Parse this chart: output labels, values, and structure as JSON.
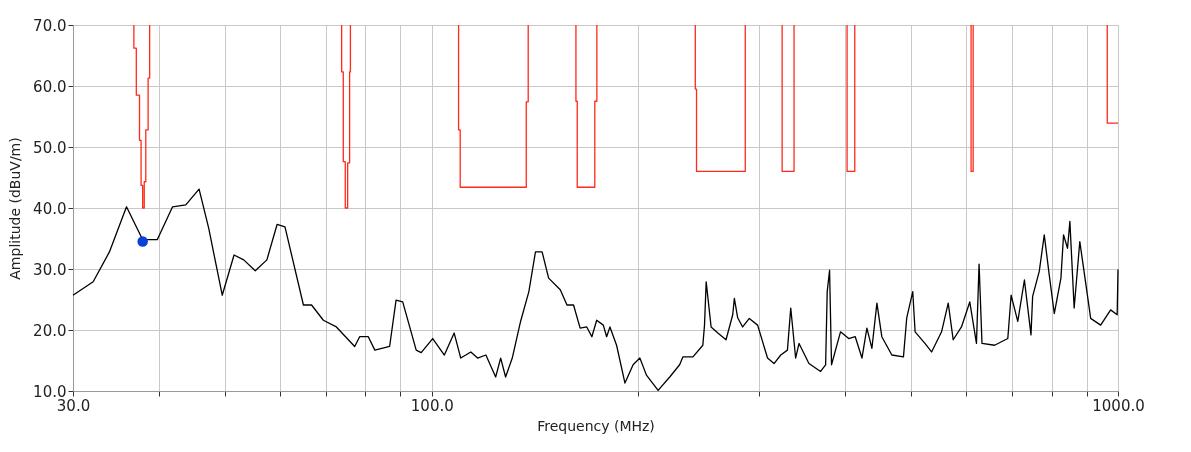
{
  "chart_data": {
    "type": "line",
    "xlabel": "Frequency (MHz)",
    "ylabel": "Amplitude (dBuV/m)",
    "log": "x",
    "grid": true,
    "xlim": [
      30,
      1000
    ],
    "ylim": [
      10,
      70
    ],
    "xticks": [
      {
        "value": 30,
        "label": "30.0"
      },
      {
        "value": 40,
        "label": null
      },
      {
        "value": 50,
        "label": null
      },
      {
        "value": 60,
        "label": null
      },
      {
        "value": 70,
        "label": null
      },
      {
        "value": 80,
        "label": null
      },
      {
        "value": 90,
        "label": null
      },
      {
        "value": 100,
        "label": "100.0"
      },
      {
        "value": 200,
        "label": null
      },
      {
        "value": 300,
        "label": null
      },
      {
        "value": 400,
        "label": null
      },
      {
        "value": 500,
        "label": null
      },
      {
        "value": 600,
        "label": null
      },
      {
        "value": 700,
        "label": null
      },
      {
        "value": 800,
        "label": null
      },
      {
        "value": 900,
        "label": null
      },
      {
        "value": 1000,
        "label": "1000.0"
      }
    ],
    "yticks": [
      {
        "value": 10,
        "label": "10.0"
      },
      {
        "value": 20,
        "label": "20.0"
      },
      {
        "value": 30,
        "label": "30.0"
      },
      {
        "value": 40,
        "label": "40.0"
      },
      {
        "value": 50,
        "label": "50.0"
      },
      {
        "value": 60,
        "label": "60.0"
      },
      {
        "value": 70,
        "label": "70.0"
      }
    ],
    "series": [
      {
        "color": "#ff2a1a",
        "x": [
          36.8,
          36.8,
          37.1,
          37.1,
          37.5,
          37.5,
          37.7,
          37.7,
          37.9,
          37.9,
          38.1,
          38.1,
          38.3,
          38.3,
          38.6,
          38.6,
          38.8,
          38.8
        ],
        "values": [
          70,
          66.2,
          66.2,
          58.5,
          58.5,
          51.1,
          51.1,
          43.7,
          43.7,
          40,
          40,
          44.3,
          44.3,
          52.8,
          52.8,
          61.3,
          61.3,
          70
        ]
      },
      {
        "color": "#ff2a1a",
        "x": [
          73.9,
          73.9,
          74.3,
          74.3,
          74.8,
          74.8,
          75.4,
          75.4,
          75.9,
          75.9,
          76.1,
          76.1
        ],
        "values": [
          70,
          62.3,
          62.3,
          47.6,
          47.6,
          40,
          40,
          47.4,
          47.4,
          62.3,
          62.3,
          70
        ]
      },
      {
        "color": "#ff2a1a",
        "x": [
          109.4,
          109.4,
          110.0,
          110.0,
          137.3,
          137.3,
          138.2,
          138.2
        ],
        "values": [
          70,
          52.8,
          52.8,
          43.4,
          43.4,
          57.4,
          57.4,
          70
        ]
      },
      {
        "color": "#ff2a1a",
        "x": [
          162.2,
          162.2,
          162.9,
          162.9,
          172.8,
          172.8,
          174.0,
          174.0
        ],
        "values": [
          70,
          57.5,
          57.5,
          43.4,
          43.4,
          57.5,
          57.5,
          70
        ]
      },
      {
        "color": "#ff2a1a",
        "x": [
          242.1,
          242.1,
          243.1,
          243.1,
          286.3,
          286.3
        ],
        "values": [
          70,
          59.5,
          59.5,
          46,
          46,
          70
        ]
      },
      {
        "color": "#ff2a1a",
        "x": [
          324,
          324,
          337.2,
          337.2
        ],
        "values": [
          70,
          46,
          46,
          70
        ]
      },
      {
        "color": "#ff2a1a",
        "x": [
          402.9,
          402.9,
          413.4,
          413.4
        ],
        "values": [
          70,
          46,
          46,
          70
        ]
      },
      {
        "color": "#ff2a1a",
        "x": [
          610.8,
          610.8,
          615.1,
          615.1
        ],
        "values": [
          70,
          46,
          46,
          70
        ]
      },
      {
        "color": "#ff2a1a",
        "x": [
          964.6,
          964.6,
          1000
        ],
        "values": [
          70,
          53.9,
          53.9
        ]
      },
      {
        "color": "#000000",
        "x": [
          30,
          32.1,
          33.9,
          35.9,
          37.9,
          39.8,
          41.9,
          43.8,
          45.8,
          47.3,
          49.5,
          51.5,
          53.2,
          55.3,
          57.5,
          59.5,
          61.1,
          65.0,
          66.8,
          69.5,
          72.6,
          77.2,
          78.5,
          80.8,
          82.6,
          86.8,
          88.7,
          90.7,
          94.9,
          96.5,
          100.3,
          104.3,
          107.8,
          110.2,
          114.0,
          116.6,
          119.9,
          123.9,
          126.0,
          128.1,
          131.0,
          134.7,
          138.5,
          141.6,
          144.8,
          148.0,
          153.9,
          157.4,
          160.9,
          164.5,
          168.2,
          171.1,
          173.9,
          177.8,
          179.8,
          181.8,
          185.9,
          191.2,
          196.5,
          201.0,
          205.5,
          213.7,
          222.2,
          229.7,
          232.3,
          240.2,
          248.3,
          249.7,
          251.1,
          255.3,
          261.1,
          268.4,
          274.5,
          276.0,
          279.1,
          283.8,
          290.2,
          298.4,
          308.5,
          315.3,
          322.5,
          329.8,
          333.5,
          339.0,
          342.9,
          354.5,
          368.6,
          374.9,
          376.9,
          379.9,
          382.4,
          394.1,
          405.1,
          414.1,
          423.5,
          430.6,
          437.9,
          445.3,
          452.7,
          468.2,
          486.8,
          492.2,
          502.2,
          506.2,
          523.2,
          535.0,
          553.2,
          565.7,
          575.2,
          591.4,
          608.1,
          621.9,
          627.4,
          633.6,
          660.9,
          690.9,
          698.6,
          714.4,
          730.5,
          746.8,
          750.9,
          767.8,
          780.8,
          794.0,
          807.5,
          825.7,
          833.0,
          844.2,
          850.9,
          863.2,
          879.7,
          892.3,
          912.4,
          943.5,
          975.6,
          997.2,
          1000
        ],
        "values": [
          25.7,
          27.9,
          32.8,
          40.2,
          34.8,
          34.8,
          40.2,
          40.5,
          43.1,
          36.7,
          25.7,
          32.3,
          31.5,
          29.7,
          31.5,
          37.3,
          36.9,
          24.1,
          24.1,
          21.6,
          20.5,
          17.3,
          18.9,
          18.9,
          16.7,
          17.3,
          24.9,
          24.6,
          16.7,
          16.3,
          18.6,
          15.9,
          19.5,
          15.4,
          16.4,
          15.4,
          15.9,
          12.3,
          15.4,
          12.3,
          15.4,
          21.4,
          26.3,
          32.8,
          32.8,
          28.5,
          26.6,
          24.1,
          24.1,
          20.3,
          20.5,
          18.9,
          21.6,
          20.8,
          18.9,
          20.5,
          17.5,
          11.3,
          14.3,
          15.4,
          12.6,
          10.1,
          12.3,
          14.3,
          15.6,
          15.6,
          17.5,
          20.8,
          27.9,
          20.5,
          19.5,
          18.4,
          22.5,
          25.2,
          22.0,
          20.5,
          21.9,
          20.8,
          15.4,
          14.5,
          15.9,
          16.7,
          23.6,
          15.4,
          17.8,
          14.5,
          13.2,
          14.3,
          26.3,
          29.8,
          14.3,
          19.7,
          18.6,
          18.9,
          15.4,
          20.3,
          17.0,
          24.4,
          18.9,
          15.9,
          15.6,
          22.0,
          26.3,
          19.7,
          17.8,
          16.4,
          19.7,
          24.4,
          18.4,
          20.5,
          24.6,
          17.8,
          30.8,
          17.8,
          17.5,
          18.6,
          25.7,
          21.4,
          28.2,
          19.2,
          25.5,
          29.6,
          35.6,
          29.0,
          22.7,
          28.5,
          35.6,
          33.4,
          37.8,
          23.6,
          34.5,
          29.6,
          21.9,
          20.8,
          23.3,
          22.5,
          29.9
        ]
      },
      {
        "type": "scatter",
        "color": "#0a3fd8",
        "x": [
          37.9
        ],
        "values": [
          34.5
        ]
      }
    ]
  }
}
